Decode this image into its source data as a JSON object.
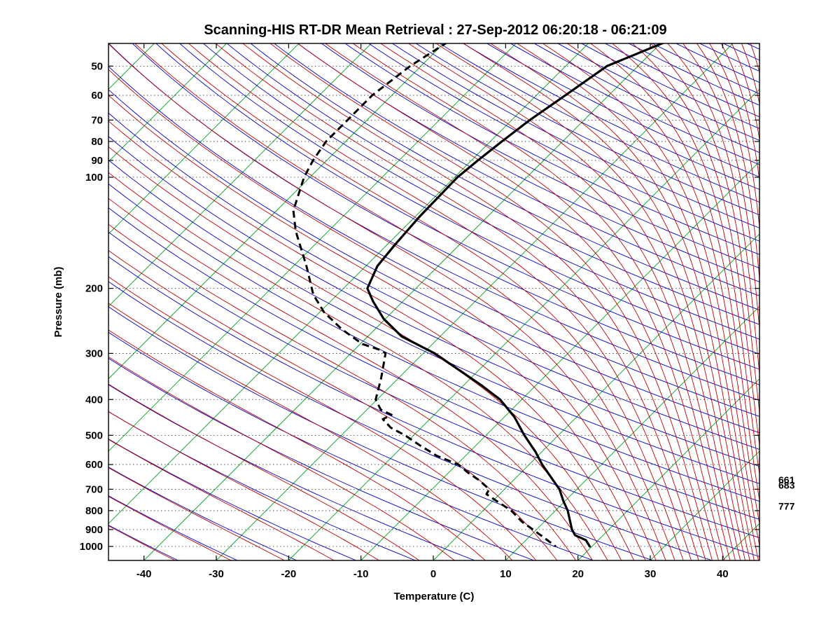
{
  "title": "Scanning-HIS RT-DR Mean Retrieval : 27-Sep-2012 06:20:18 - 06:21:09",
  "chart_data": {
    "type": "line",
    "subtype": "skewT-logP-sounding",
    "title": "Scanning-HIS RT-DR Mean Retrieval : 27-Sep-2012 06:20:18 - 06:21:09",
    "xlabel": "Temperature (C)",
    "ylabel": "Pressure (mb)",
    "xlim": [
      -45,
      45
    ],
    "plim": [
      43,
      1091
    ],
    "skew_deg": 45,
    "grid": "dotted-horizontal-pressure-lines",
    "x_ticks": [
      -40,
      -30,
      -20,
      -10,
      0,
      10,
      20,
      30,
      40
    ],
    "pressure_ticks": [
      50,
      60,
      70,
      80,
      90,
      100,
      200,
      300,
      400,
      500,
      600,
      700,
      800,
      900,
      1000
    ],
    "annotations": [
      {
        "text": "661",
        "pressure_mb": 661
      },
      {
        "text": "683",
        "pressure_mb": 683
      },
      {
        "text": "777",
        "pressure_mb": 777
      }
    ],
    "background": {
      "isotherms": {
        "color": "#00a020",
        "min_c": -120,
        "max_c": 40,
        "step_c": 10
      },
      "dry_adiabats": {
        "color": "#0000c8",
        "theta_min_k": 232,
        "theta_max_k": 632,
        "step_k": 8
      },
      "moist_adiabats": {
        "color": "#c00000",
        "thetae_min_k": 232,
        "thetae_max_k": 640,
        "step_k": 8
      },
      "pressure_gridlines": {
        "color": "#333333",
        "style": "dotted"
      }
    },
    "series": [
      {
        "name": "temperature",
        "style": "solid",
        "color": "#000000",
        "points_p_t": [
          [
            43,
            -39.5
          ],
          [
            50,
            -44.3
          ],
          [
            60,
            -46.0
          ],
          [
            70,
            -47.5
          ],
          [
            80,
            -48.4
          ],
          [
            90,
            -49.1
          ],
          [
            100,
            -49.6
          ],
          [
            128,
            -49.4
          ],
          [
            153,
            -48.9
          ],
          [
            174,
            -48.4
          ],
          [
            200,
            -46.7
          ],
          [
            217,
            -44.1
          ],
          [
            242,
            -40.2
          ],
          [
            270,
            -35.3
          ],
          [
            300,
            -28.4
          ],
          [
            336,
            -22.2
          ],
          [
            367,
            -17.4
          ],
          [
            400,
            -13.0
          ],
          [
            446,
            -8.6
          ],
          [
            500,
            -4.7
          ],
          [
            554,
            -0.9
          ],
          [
            600,
            1.8
          ],
          [
            700,
            7.6
          ],
          [
            754,
            9.8
          ],
          [
            800,
            11.7
          ],
          [
            900,
            14.9
          ],
          [
            932,
            16.1
          ],
          [
            962,
            18.3
          ],
          [
            1000,
            19.7
          ]
        ]
      },
      {
        "name": "dew_point",
        "style": "dashed",
        "color": "#000000",
        "points_p_t": [
          [
            43,
            -69.6
          ],
          [
            50,
            -71.5
          ],
          [
            60,
            -72.7
          ],
          [
            70,
            -72.7
          ],
          [
            80,
            -72.7
          ],
          [
            90,
            -71.9
          ],
          [
            100,
            -70.8
          ],
          [
            123,
            -67.7
          ],
          [
            140,
            -64.5
          ],
          [
            174,
            -58.2
          ],
          [
            208,
            -53.3
          ],
          [
            232,
            -49.4
          ],
          [
            258,
            -44.6
          ],
          [
            283,
            -39.7
          ],
          [
            294,
            -36.3
          ],
          [
            300,
            -35.2
          ],
          [
            350,
            -32.4
          ],
          [
            400,
            -30.2
          ],
          [
            426,
            -28.1
          ],
          [
            440,
            -25.9
          ],
          [
            452,
            -26.5
          ],
          [
            477,
            -24.2
          ],
          [
            500,
            -21.2
          ],
          [
            531,
            -17.9
          ],
          [
            568,
            -14.0
          ],
          [
            600,
            -9.8
          ],
          [
            633,
            -7.2
          ],
          [
            661,
            -4.8
          ],
          [
            700,
            -2.1
          ],
          [
            722,
            -1.8
          ],
          [
            754,
            0.6
          ],
          [
            800,
            3.9
          ],
          [
            857,
            6.9
          ],
          [
            900,
            9.5
          ],
          [
            944,
            12.0
          ],
          [
            1000,
            15.0
          ]
        ]
      }
    ]
  }
}
